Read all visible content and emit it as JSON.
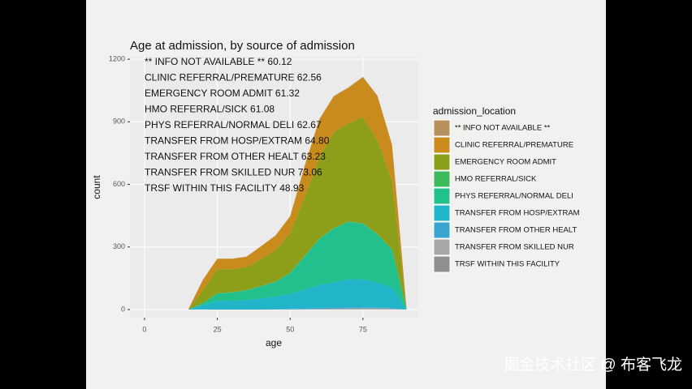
{
  "chart_data": {
    "type": "area",
    "stacked": true,
    "title": "Age at admission, by source of admission",
    "x_label": "age",
    "y_label": "count",
    "legend_title": "admission_location",
    "annotations": [
      "** INFO NOT AVAILABLE ** 60.12",
      "CLINIC REFERRAL/PREMATURE 62.56",
      "EMERGENCY ROOM ADMIT 61.32",
      "HMO REFERRAL/SICK 61.08",
      "PHYS REFERRAL/NORMAL DELI 62.67",
      "TRANSFER FROM HOSP/EXTRAM 64.80",
      "TRANSFER FROM OTHER HEALT 63.23",
      "TRANSFER FROM SKILLED NUR 73.06",
      "TRSF WITHIN THIS FACILITY 48.93"
    ],
    "x": [
      15,
      20,
      25,
      30,
      35,
      40,
      45,
      50,
      55,
      60,
      65,
      70,
      75,
      80,
      85,
      90
    ],
    "series": [
      {
        "name": "** INFO NOT AVAILABLE **",
        "color": "#b8905e",
        "values": [
          0,
          1,
          1,
          1,
          1,
          1,
          2,
          2,
          2,
          3,
          3,
          3,
          3,
          3,
          2,
          0
        ]
      },
      {
        "name": "CLINIC REFERRAL/PREMATURE",
        "color": "#c98b1c",
        "values": [
          0,
          50,
          50,
          50,
          50,
          60,
          70,
          80,
          150,
          180,
          170,
          170,
          190,
          210,
          170,
          0
        ]
      },
      {
        "name": "EMERGENCY ROOM ADMIT",
        "color": "#8c9e1a",
        "values": [
          0,
          60,
          115,
          110,
          110,
          130,
          150,
          190,
          280,
          390,
          460,
          470,
          510,
          450,
          330,
          0
        ]
      },
      {
        "name": "HMO REFERRAL/SICK",
        "color": "#3dba5b",
        "values": [
          0,
          0,
          1,
          1,
          1,
          1,
          1,
          2,
          2,
          2,
          2,
          2,
          2,
          2,
          1,
          0
        ]
      },
      {
        "name": "PHYS REFERRAL/NORMAL DELI",
        "color": "#22c08c",
        "values": [
          0,
          10,
          35,
          40,
          45,
          60,
          70,
          100,
          160,
          220,
          260,
          275,
          265,
          230,
          180,
          0
        ]
      },
      {
        "name": "TRANSFER FROM HOSP/EXTRAM",
        "color": "#21b5c9",
        "values": [
          0,
          20,
          40,
          40,
          45,
          50,
          60,
          70,
          90,
          110,
          120,
          135,
          135,
          120,
          100,
          0
        ]
      },
      {
        "name": "TRANSFER FROM OTHER HEALT",
        "color": "#3aa6cf",
        "values": [
          0,
          1,
          2,
          2,
          2,
          2,
          3,
          3,
          4,
          5,
          5,
          5,
          5,
          4,
          3,
          0
        ]
      },
      {
        "name": "TRANSFER FROM SKILLED NUR",
        "color": "#a8a8a8",
        "values": [
          0,
          0,
          0,
          0,
          0,
          0,
          0,
          1,
          1,
          2,
          3,
          4,
          5,
          5,
          4,
          0
        ]
      },
      {
        "name": "TRSF WITHIN THIS FACILITY",
        "color": "#8f8f8f",
        "values": [
          0,
          0,
          0,
          0,
          0,
          0,
          0,
          0,
          1,
          1,
          1,
          1,
          1,
          1,
          0,
          0
        ]
      }
    ],
    "xlim": [
      -5,
      94
    ],
    "xticks": [
      0,
      25,
      50,
      75
    ],
    "ylim": [
      -39,
      1212
    ],
    "yticks": [
      0,
      300,
      600,
      900,
      1200
    ],
    "grid": true,
    "legend_position": "right"
  },
  "watermark": "掘金技术社区 @ 布客飞龙"
}
